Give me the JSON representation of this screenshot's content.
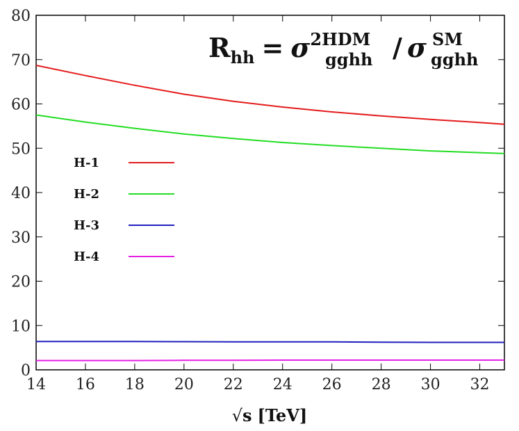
{
  "chart_data": {
    "type": "line",
    "title": "",
    "xlabel": "√s [TeV]",
    "xlabel_parts": {
      "root": "√",
      "var": "s",
      "unit": "[TeV]"
    },
    "ylabel": "",
    "xlim": [
      14,
      33
    ],
    "ylim": [
      0,
      80
    ],
    "xticks": [
      14,
      16,
      18,
      20,
      22,
      24,
      26,
      28,
      30,
      32
    ],
    "yticks": [
      0,
      10,
      20,
      30,
      40,
      50,
      60,
      70,
      80
    ],
    "grid": false,
    "legend_placement": "left",
    "annotation": {
      "text": "R_hh = σ_gghh^2HDM / σ_gghh^SM",
      "parts": {
        "R": "R",
        "R_sub": "hh",
        "eq": "=",
        "sigma1": "σ",
        "sigma1_sup": "2HDM",
        "sigma1_sub": "gghh",
        "slash": "/",
        "sigma2": "σ",
        "sigma2_sup": "SM",
        "sigma2_sub": "gghh"
      }
    },
    "x": [
      14,
      16,
      18,
      20,
      22,
      24,
      26,
      28,
      30,
      32,
      33
    ],
    "series": [
      {
        "name": "H-1",
        "color": "#e41a1c",
        "values": [
          68.7,
          66.4,
          64.2,
          62.2,
          60.6,
          59.3,
          58.2,
          57.3,
          56.5,
          55.8,
          55.4
        ]
      },
      {
        "name": "H-2",
        "color": "#22dd22",
        "values": [
          57.5,
          55.9,
          54.5,
          53.2,
          52.2,
          51.3,
          50.6,
          50.0,
          49.4,
          49.0,
          48.8
        ]
      },
      {
        "name": "H-3",
        "color": "#1f1fbf",
        "values": [
          6.4,
          6.4,
          6.4,
          6.35,
          6.3,
          6.3,
          6.3,
          6.25,
          6.2,
          6.2,
          6.2
        ]
      },
      {
        "name": "H-4",
        "color": "#e61ee6",
        "values": [
          2.1,
          2.1,
          2.1,
          2.15,
          2.15,
          2.2,
          2.2,
          2.2,
          2.2,
          2.2,
          2.2
        ]
      }
    ]
  }
}
